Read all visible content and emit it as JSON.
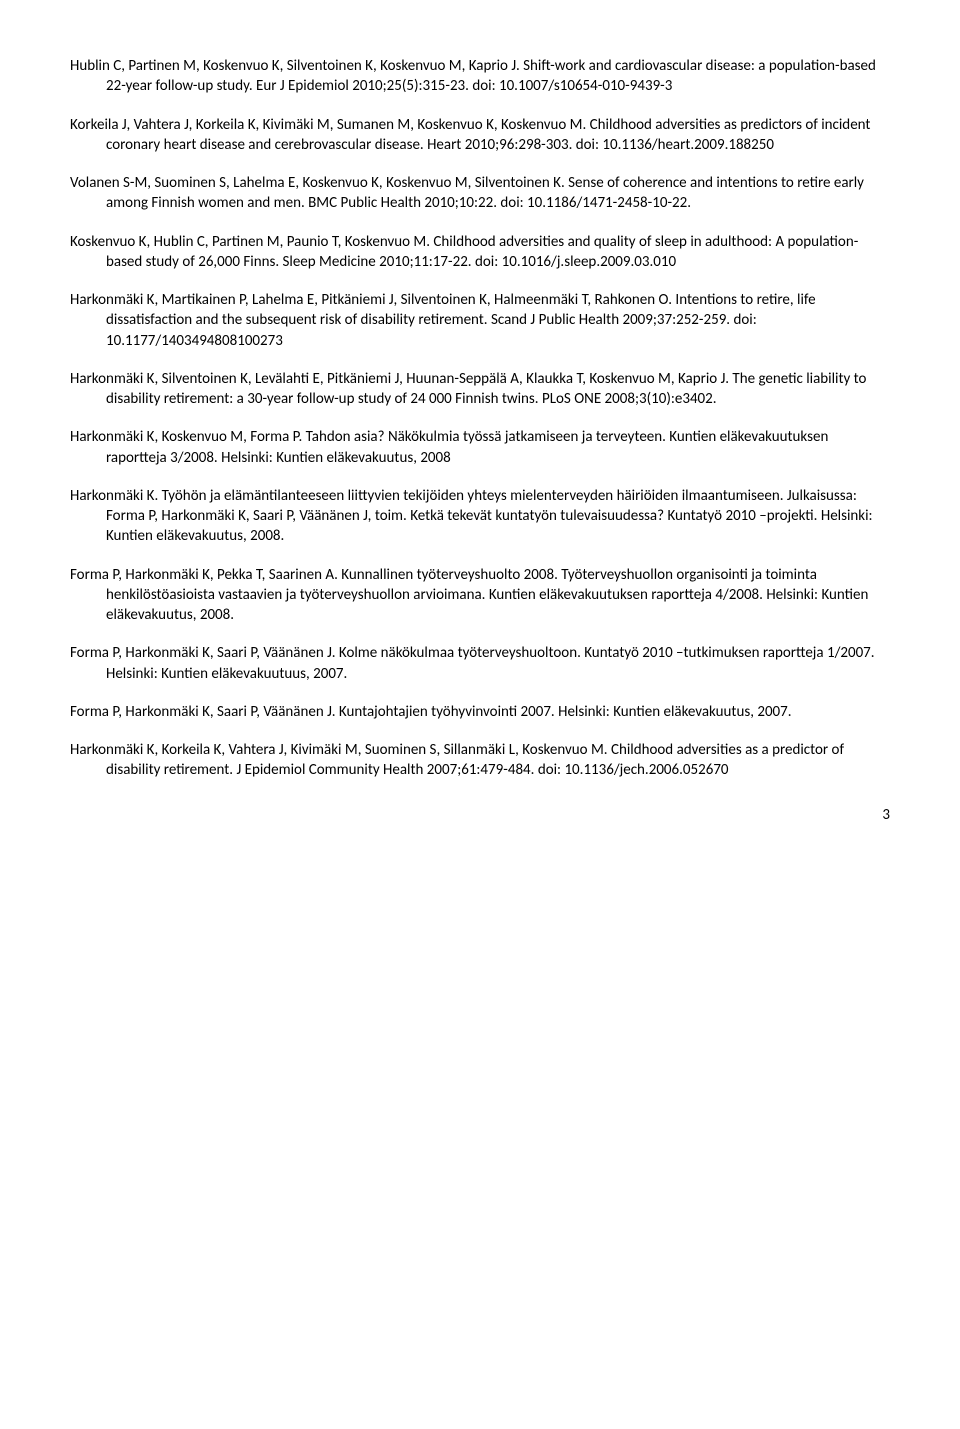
{
  "entries": [
    "Hublin C, Partinen M, Koskenvuo K, Silventoinen K, Koskenvuo M, Kaprio J. Shift-work and cardiovascular disease: a population-based 22-year follow-up study. Eur J Epidemiol 2010;25(5):315-23. doi: 10.1007/s10654-010-9439-3",
    "Korkeila J, Vahtera J, Korkeila K, Kivimäki M, Sumanen M, Koskenvuo K, Koskenvuo M. Childhood adversities as predictors of incident coronary heart disease and cerebrovascular disease. Heart 2010;96:298-303. doi: 10.1136/heart.2009.188250",
    "Volanen S-M, Suominen S, Lahelma E, Koskenvuo K, Koskenvuo M, Silventoinen K. Sense of coherence and intentions to retire early among Finnish women and men. BMC Public Health 2010;10:22. doi: 10.1186/1471-2458-10-22.",
    "Koskenvuo K, Hublin C, Partinen M, Paunio T, Koskenvuo M. Childhood adversities and quality of sleep in adulthood: A population-based study of 26,000 Finns. Sleep Medicine 2010;11:17-22. doi: 10.1016/j.sleep.2009.03.010",
    "Harkonmäki K, Martikainen P, Lahelma E, Pitkäniemi J, Silventoinen K, Halmeenmäki T, Rahkonen O. Intentions to retire, life dissatisfaction and the subsequent risk of disability retirement. Scand J Public Health 2009;37:252-259. doi: 10.1177/1403494808100273",
    "Harkonmäki K, Silventoinen K, Levälahti E, Pitkäniemi J, Huunan-Seppälä A, Klaukka T, Koskenvuo M, Kaprio J. The genetic liability to disability retirement: a 30-year follow-up study of 24 000 Finnish twins. PLoS ONE 2008;3(10):e3402.",
    "Harkonmäki K, Koskenvuo M, Forma P. Tahdon asia? Näkökulmia työssä jatkamiseen ja terveyteen. Kuntien eläkevakuutuksen raportteja 3/2008. Helsinki: Kuntien eläkevakuutus, 2008",
    "Harkonmäki K. Työhön ja elämäntilanteeseen liittyvien tekijöiden yhteys mielenterveyden häiriöiden ilmaantumiseen. Julkaisussa: Forma P, Harkonmäki K, Saari P, Väänänen J, toim. Ketkä tekevät kuntatyön tulevaisuudessa? Kuntatyö 2010 –projekti. Helsinki: Kuntien eläkevakuutus, 2008.",
    "Forma P, Harkonmäki K, Pekka T, Saarinen A. Kunnallinen työterveyshuolto 2008. Työterveyshuollon organisointi ja toiminta henkilöstöasioista vastaavien ja työterveyshuollon arvioimana. Kuntien eläkevakuutuksen raportteja 4/2008. Helsinki: Kuntien eläkevakuutus, 2008.",
    "Forma P, Harkonmäki K, Saari P, Väänänen J. Kolme näkökulmaa työterveyshuoltoon. Kuntatyö 2010 –tutkimuksen raportteja 1/2007. Helsinki: Kuntien eläkevakuutuus, 2007.",
    "Forma P, Harkonmäki K, Saari P, Väänänen J. Kuntajohtajien työhyvinvointi 2007. Helsinki: Kuntien eläkevakuutus, 2007.",
    "Harkonmäki K, Korkeila K, Vahtera J, Kivimäki M, Suominen S, Sillanmäki L, Koskenvuo M. Childhood adversities as a predictor of disability retirement. J Epidemiol Community Health 2007;61:479-484. doi: 10.1136/jech.2006.052670"
  ],
  "pageNumber": "3"
}
